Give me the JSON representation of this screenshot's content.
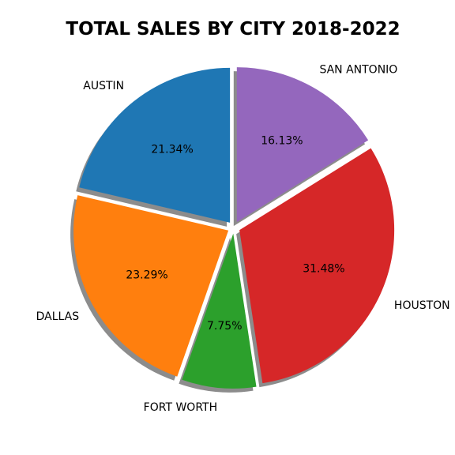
{
  "chart_data": {
    "type": "pie",
    "title": "TOTAL SALES BY CITY 2018-2022",
    "categories": [
      "AUSTIN",
      "DALLAS",
      "FORT WORTH",
      "HOUSTON",
      "SAN ANTONIO"
    ],
    "values": [
      21.34,
      23.29,
      7.75,
      31.48,
      16.13
    ],
    "percent_labels": [
      "21.34%",
      "23.29%",
      "7.75%",
      "31.48%",
      "16.13%"
    ],
    "colors": [
      "#1f77b4",
      "#ff7f0e",
      "#2ca02c",
      "#d62728",
      "#9467bd"
    ],
    "start_angle_deg": 90,
    "direction": "counterclockwise",
    "exploded": true,
    "shadow": true
  }
}
